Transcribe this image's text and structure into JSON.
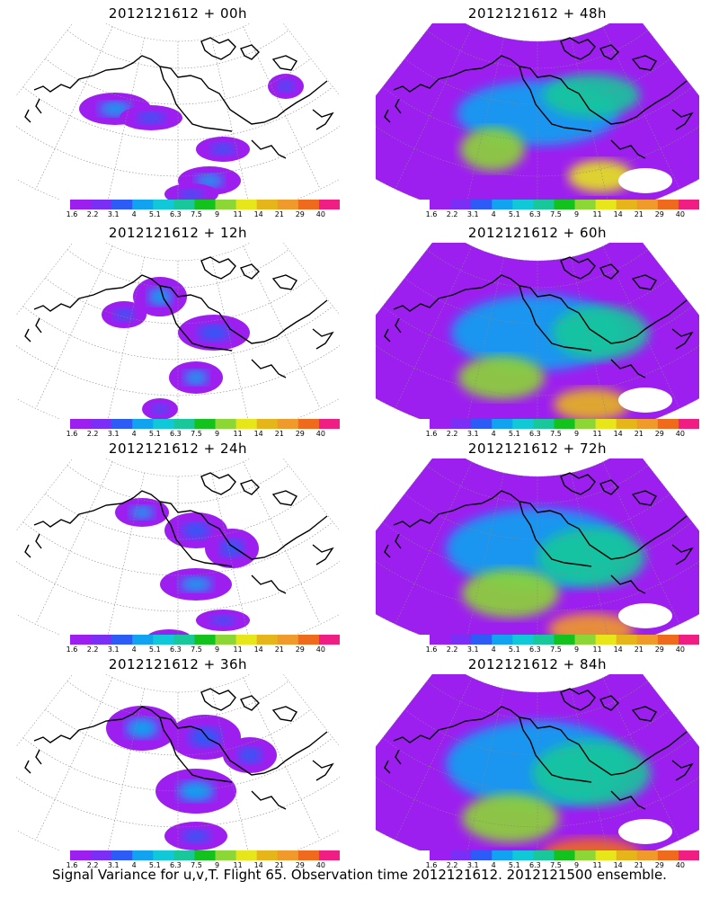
{
  "footer": "Signal Variance for u,v,T. Flight 65. Observation time 2012121612. 2012121500 ensemble.",
  "colorbar": {
    "labels": [
      "1.6",
      "2.2",
      "3.1",
      "4",
      "5.1",
      "6.3",
      "7.5",
      "9",
      "11",
      "14",
      "21",
      "29",
      "40"
    ],
    "colors": [
      "#9d1ff0",
      "#7b2ef5",
      "#2c5cf5",
      "#11a3f0",
      "#11c8d8",
      "#18c89a",
      "#13c21c",
      "#8cd635",
      "#e6e61a",
      "#e6b51a",
      "#ef9a2a",
      "#f06a1e",
      "#f01e82"
    ]
  },
  "panels": [
    {
      "title": "2012121612 + 00h",
      "level": 0
    },
    {
      "title": "2012121612 + 48h",
      "level": 4
    },
    {
      "title": "2012121612 + 12h",
      "level": 1
    },
    {
      "title": "2012121612 + 60h",
      "level": 5
    },
    {
      "title": "2012121612 + 24h",
      "level": 2
    },
    {
      "title": "2012121612 + 72h",
      "level": 6
    },
    {
      "title": "2012121612 + 36h",
      "level": 3
    },
    {
      "title": "2012121612 + 84h",
      "level": 7
    }
  ]
}
